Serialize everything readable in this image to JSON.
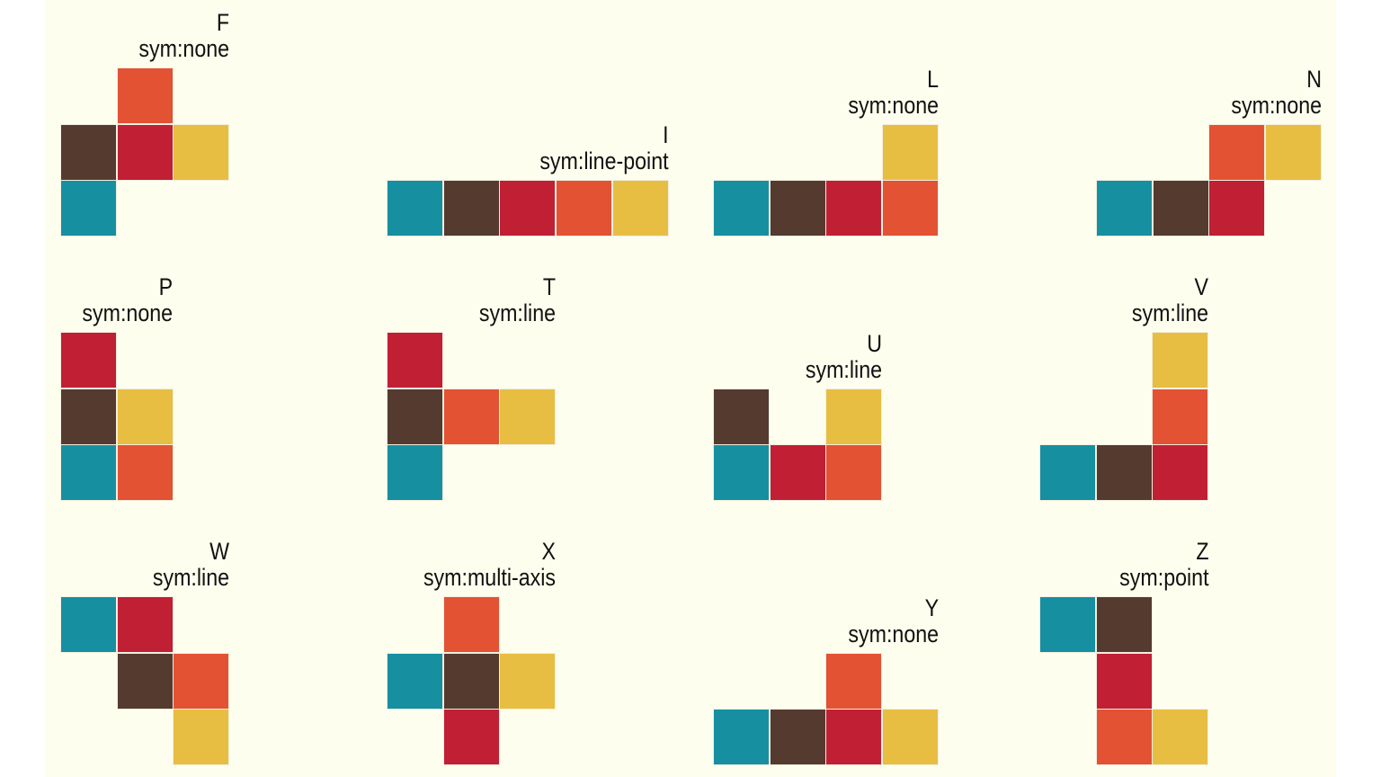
{
  "palette": {
    "teal": "#168fa1",
    "brown": "#553a2f",
    "crimson": "#c01f34",
    "orange": "#e25233",
    "gold": "#e8be42"
  },
  "pieces": [
    {
      "name": "F",
      "sym": "sym:none",
      "cells": [
        [
          1,
          0,
          "orange"
        ],
        [
          0,
          1,
          "brown"
        ],
        [
          1,
          1,
          "crimson"
        ],
        [
          2,
          1,
          "gold"
        ],
        [
          0,
          2,
          "teal"
        ]
      ]
    },
    {
      "name": "I",
      "sym": "sym:line-point",
      "cells": [
        [
          0,
          0,
          "teal"
        ],
        [
          1,
          0,
          "brown"
        ],
        [
          2,
          0,
          "crimson"
        ],
        [
          3,
          0,
          "orange"
        ],
        [
          4,
          0,
          "gold"
        ]
      ]
    },
    {
      "name": "L",
      "sym": "sym:none",
      "cells": [
        [
          3,
          0,
          "gold"
        ],
        [
          0,
          1,
          "teal"
        ],
        [
          1,
          1,
          "brown"
        ],
        [
          2,
          1,
          "crimson"
        ],
        [
          3,
          1,
          "orange"
        ]
      ]
    },
    {
      "name": "N",
      "sym": "sym:none",
      "cells": [
        [
          2,
          0,
          "orange"
        ],
        [
          3,
          0,
          "gold"
        ],
        [
          0,
          1,
          "teal"
        ],
        [
          1,
          1,
          "brown"
        ],
        [
          2,
          1,
          "crimson"
        ]
      ]
    },
    {
      "name": "P",
      "sym": "sym:none",
      "cells": [
        [
          0,
          0,
          "crimson"
        ],
        [
          0,
          1,
          "brown"
        ],
        [
          1,
          1,
          "gold"
        ],
        [
          0,
          2,
          "teal"
        ],
        [
          1,
          2,
          "orange"
        ]
      ]
    },
    {
      "name": "T",
      "sym": "sym:line",
      "cells": [
        [
          0,
          0,
          "crimson"
        ],
        [
          0,
          1,
          "brown"
        ],
        [
          1,
          1,
          "orange"
        ],
        [
          2,
          1,
          "gold"
        ],
        [
          0,
          2,
          "teal"
        ]
      ]
    },
    {
      "name": "U",
      "sym": "sym:line",
      "cells": [
        [
          0,
          0,
          "brown"
        ],
        [
          2,
          0,
          "gold"
        ],
        [
          0,
          1,
          "teal"
        ],
        [
          1,
          1,
          "crimson"
        ],
        [
          2,
          1,
          "orange"
        ]
      ]
    },
    {
      "name": "V",
      "sym": "sym:line",
      "cells": [
        [
          2,
          0,
          "gold"
        ],
        [
          2,
          1,
          "orange"
        ],
        [
          0,
          2,
          "teal"
        ],
        [
          1,
          2,
          "brown"
        ],
        [
          2,
          2,
          "crimson"
        ]
      ]
    },
    {
      "name": "W",
      "sym": "sym:line",
      "cells": [
        [
          0,
          0,
          "teal"
        ],
        [
          1,
          0,
          "crimson"
        ],
        [
          1,
          1,
          "brown"
        ],
        [
          2,
          1,
          "orange"
        ],
        [
          2,
          2,
          "gold"
        ]
      ]
    },
    {
      "name": "X",
      "sym": "sym:multi-axis",
      "cells": [
        [
          1,
          0,
          "orange"
        ],
        [
          0,
          1,
          "teal"
        ],
        [
          1,
          1,
          "brown"
        ],
        [
          2,
          1,
          "gold"
        ],
        [
          1,
          2,
          "crimson"
        ]
      ]
    },
    {
      "name": "Y",
      "sym": "sym:none",
      "cells": [
        [
          2,
          0,
          "orange"
        ],
        [
          0,
          1,
          "teal"
        ],
        [
          1,
          1,
          "brown"
        ],
        [
          2,
          1,
          "crimson"
        ],
        [
          3,
          1,
          "gold"
        ]
      ]
    },
    {
      "name": "Z",
      "sym": "sym:point",
      "cells": [
        [
          0,
          0,
          "teal"
        ],
        [
          1,
          0,
          "brown"
        ],
        [
          1,
          1,
          "crimson"
        ],
        [
          1,
          2,
          "orange"
        ],
        [
          2,
          2,
          "gold"
        ]
      ]
    }
  ]
}
